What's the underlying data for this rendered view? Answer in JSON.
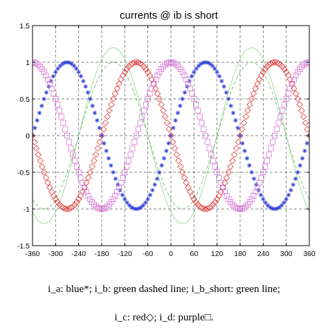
{
  "chart_data": {
    "type": "line",
    "title": "currents @ ib is short",
    "xlabel": "",
    "ylabel": "",
    "xlim": [
      -360,
      360
    ],
    "ylim": [
      -1.5,
      1.5
    ],
    "grid": true,
    "x_ticks": [
      -360,
      -300,
      -240,
      -180,
      -120,
      -60,
      0,
      60,
      120,
      180,
      240,
      300,
      360
    ],
    "x_tick_labels": [
      "-360",
      "-300",
      "-240",
      "-180",
      "-120",
      "-60",
      "0",
      "60",
      "120",
      "180",
      "240",
      "300",
      "360"
    ],
    "y_ticks": [
      1.5,
      1,
      0.5,
      0,
      -0.5,
      -1,
      -1.5
    ],
    "y_tick_labels": [
      "1.5",
      "1",
      "0.5",
      "0",
      "-0.5",
      "-1",
      "-1.5"
    ],
    "series": [
      {
        "name": "i_a",
        "marker": "asterisk",
        "color": "#2b3bd6",
        "amplitude": 1.0,
        "phase_deg": 0,
        "x_step_deg": 6
      },
      {
        "name": "i_b",
        "marker": "none",
        "line": "dashed",
        "color": "#5fb85f",
        "amplitude": 1.0,
        "phase_deg": -120
      },
      {
        "name": "i_b_short",
        "marker": "none",
        "line": "solid",
        "color": "#86d486",
        "amplitude": 1.2,
        "phase_deg": -120
      },
      {
        "name": "i_c",
        "marker": "diamond",
        "color": "#e03a3a",
        "amplitude": 1.0,
        "phase_deg": 180,
        "x_step_deg": 5
      },
      {
        "name": "i_d",
        "marker": "square",
        "color": "#d477d4",
        "amplitude": 1.0,
        "phase_deg": 90,
        "x_step_deg": 5
      }
    ]
  },
  "caption": {
    "line1": "i_a: blue*; i_b: green dashed line; i_b_short: green line;",
    "line2": "i_c: red◇; i_d: purple□."
  }
}
